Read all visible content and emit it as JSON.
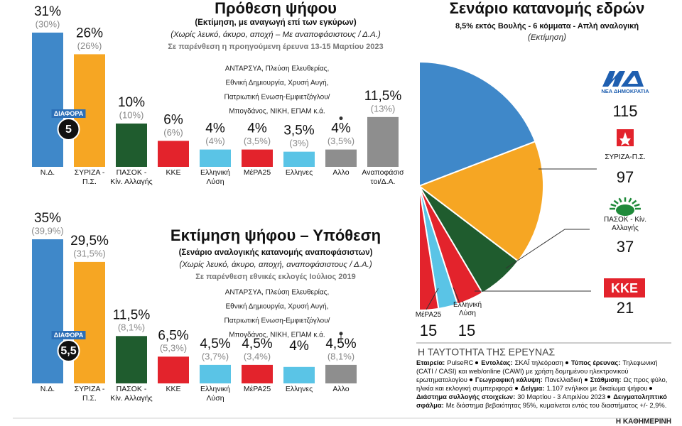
{
  "chart_data": [
    {
      "type": "bar",
      "title": "Πρόθεση ψήφου",
      "subtitle": [
        "(Εκτίμηση, με αναγωγή επί των εγκύρων)",
        "(Χωρίς λευκό, άκυρο, αποχή – Με αναποφάσιστους / Δ.Α.)",
        "Σε παρένθεση η προηγούμενη έρευνα 13-15 Μαρτίου 2023"
      ],
      "categories": [
        "Ν.Δ.",
        "ΣΥΡΙΖΑ - Π.Σ.",
        "ΠΑΣΟΚ - Κίν. Αλλαγής",
        "ΚΚΕ",
        "Ελληνική Λύση",
        "ΜέΡΑ25",
        "Ελληνες",
        "Αλλο",
        "Αναποφάσιστοι/Δ.Α."
      ],
      "values": [
        31,
        26,
        10,
        6,
        4,
        4,
        3.5,
        4,
        11.5
      ],
      "value_labels": [
        "31%",
        "26%",
        "10%",
        "6%",
        "4%",
        "4%",
        "3,5%",
        "4%",
        "11,5%"
      ],
      "previous": {
        "values": [
          30,
          26,
          10,
          6,
          4,
          3.5,
          3,
          3.5,
          13
        ],
        "value_labels": [
          "(30%)",
          "(26%)",
          "(10%)",
          "(6%)",
          "(4%)",
          "(3,5%)",
          "(3%)",
          "(3,5%)",
          "(13%)"
        ]
      },
      "colors": [
        "#3f88c9",
        "#f6a623",
        "#1f5c2e",
        "#e3232c",
        "#5ac4e6",
        "#e3232c",
        "#5ac4e6",
        "#8e8e8e",
        "#8e8e8e"
      ],
      "difference_title": "ΔΙΑΦΟΡΑ",
      "difference": 5,
      "annotation": [
        "ΑΝΤΑΡΣΥΑ, Πλεύση Ελευθερίας,",
        "Εθνική Δημιουργία, Χρυσή Αυγή,",
        "Πατριωτική Ενωση-Εμφιετζόγλου/",
        "Μπογδάνος, ΝΙΚΗ, ΕΠΑΜ κ.ά."
      ]
    },
    {
      "type": "bar",
      "title": "Εκτίμηση ψήφου – Υπόθεση",
      "subtitle": [
        "(Σενάριο αναλογικής κατανομής αναποφάσιστων)",
        "(Χωρίς λευκό, άκυρο, αποχή, αναποφάσιστους / Δ.Α.)",
        "Σε παρένθεση εθνικές εκλογές Ιούλιος 2019"
      ],
      "categories": [
        "Ν.Δ.",
        "ΣΥΡΙΖΑ - Π.Σ.",
        "ΠΑΣΟΚ - Κίν. Αλλαγής",
        "ΚΚΕ",
        "Ελληνική Λύση",
        "ΜέΡΑ25",
        "Ελληνες",
        "Αλλο"
      ],
      "values": [
        35,
        29.5,
        11.5,
        6.5,
        4.5,
        4.5,
        4,
        4.5
      ],
      "value_labels": [
        "35%",
        "29,5%",
        "11,5%",
        "6,5%",
        "4,5%",
        "4,5%",
        "4%",
        "4,5%"
      ],
      "previous": {
        "values": [
          39.9,
          31.5,
          8.1,
          5.3,
          3.7,
          3.4,
          null,
          8.1
        ],
        "value_labels": [
          "(39,9%)",
          "(31,5%)",
          "(8,1%)",
          "(5,3%)",
          "(3,7%)",
          "(3,4%)",
          null,
          "(8,1%)"
        ]
      },
      "colors": [
        "#3f88c9",
        "#f6a623",
        "#1f5c2e",
        "#e3232c",
        "#5ac4e6",
        "#e3232c",
        "#5ac4e6",
        "#8e8e8e"
      ],
      "difference_title": "ΔΙΑΦΟΡΑ",
      "difference": {
        "value": 5.5,
        "label": "5,5"
      },
      "annotation": [
        "ΑΝΤΑΡΣΥΑ, Πλεύση Ελευθερίας,",
        "Εθνική Δημιουργία, Χρυσή Αυγή,",
        "Πατριωτική Ενωση-Εμφιετζόγλου/",
        "Μπογδάνος, ΝΙΚΗ, ΕΠΑΜ κ.ά."
      ]
    },
    {
      "type": "pie",
      "title": "Σενάριο κατανομής εδρών",
      "subtitle": [
        "8,5% εκτός Βουλής - 6 κόμματα - Απλή αναλογική",
        "(Εκτίμηση)"
      ],
      "categories": [
        "ΝΕΑ ΔΗΜΟΚΡΑΤΙΑ",
        "ΣΥΡΙΖΑ-Π.Σ.",
        "ΠΑΣΟΚ - Κίν. Αλλαγής",
        "ΚΚΕ",
        "Ελληνική Λύση",
        "ΜέΡΑ25"
      ],
      "values": [
        115,
        97,
        37,
        21,
        15,
        15
      ],
      "colors": [
        "#3f88c9",
        "#f6a623",
        "#1f5c2e",
        "#e3232c",
        "#5ac4e6",
        "#e3232c"
      ]
    }
  ],
  "survey": {
    "title": "Η ΤΑΥΤΟΤΗΤΑ ΤΗΣ ΕΡΕΥΝΑΣ",
    "items": [
      {
        "label": "Εταιρεία:",
        "text": "PulseRC"
      },
      {
        "label": "Εντολέας:",
        "text": "ΣΚΑΪ τηλεόραση"
      },
      {
        "label": "Τύπος έρευνας:",
        "text": "Τηλεφωνική (CATI / CASI) και web/online (CAWI) με χρήση δομημένου ηλεκτρονικού ερωτηματολογίου"
      },
      {
        "label": "Γεωγραφική κάλυψη:",
        "text": "Πανελλαδική"
      },
      {
        "label": "Στάθμιση:",
        "text": "Ως προς φύλο, ηλικία και εκλογική συμπεριφορά"
      },
      {
        "label": "Δείγμα:",
        "text": "1.107 ενήλικοι με δικαίωμα ψήφου"
      },
      {
        "label": "Διάστημα συλλογής στοιχείων:",
        "text": "30 Μαρτίου - 3 Απριλίου 2023"
      },
      {
        "label": "Δειγματοληπτικό σφάλμα:",
        "text": "Με διάστημα βεβαιότητας 95%, κυμαίνεται εντός του διαστήματος +/- 2,9%."
      }
    ]
  },
  "footer": "Η ΚΑΘΗΜΕΡΙΝΗ"
}
